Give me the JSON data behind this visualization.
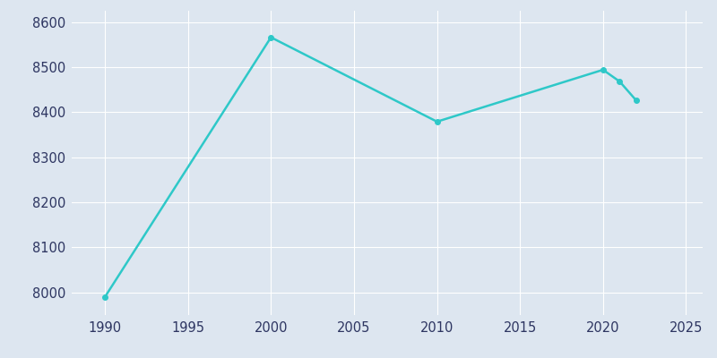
{
  "years": [
    1990,
    2000,
    2010,
    2020,
    2021,
    2022
  ],
  "population": [
    7990,
    8566,
    8379,
    8494,
    8468,
    8426
  ],
  "line_color": "#2ec8c8",
  "marker": "o",
  "marker_size": 4,
  "line_width": 1.8,
  "bg_color": "#dde6f0",
  "plot_bg_color": "#dde6f0",
  "grid_color": "#ffffff",
  "xlim": [
    1988,
    2026
  ],
  "ylim": [
    7950,
    8625
  ],
  "xticks": [
    1990,
    1995,
    2000,
    2005,
    2010,
    2015,
    2020,
    2025
  ],
  "yticks": [
    8000,
    8100,
    8200,
    8300,
    8400,
    8500,
    8600
  ],
  "tick_color": "#2d3561",
  "tick_fontsize": 10.5,
  "grid_linewidth": 0.8
}
